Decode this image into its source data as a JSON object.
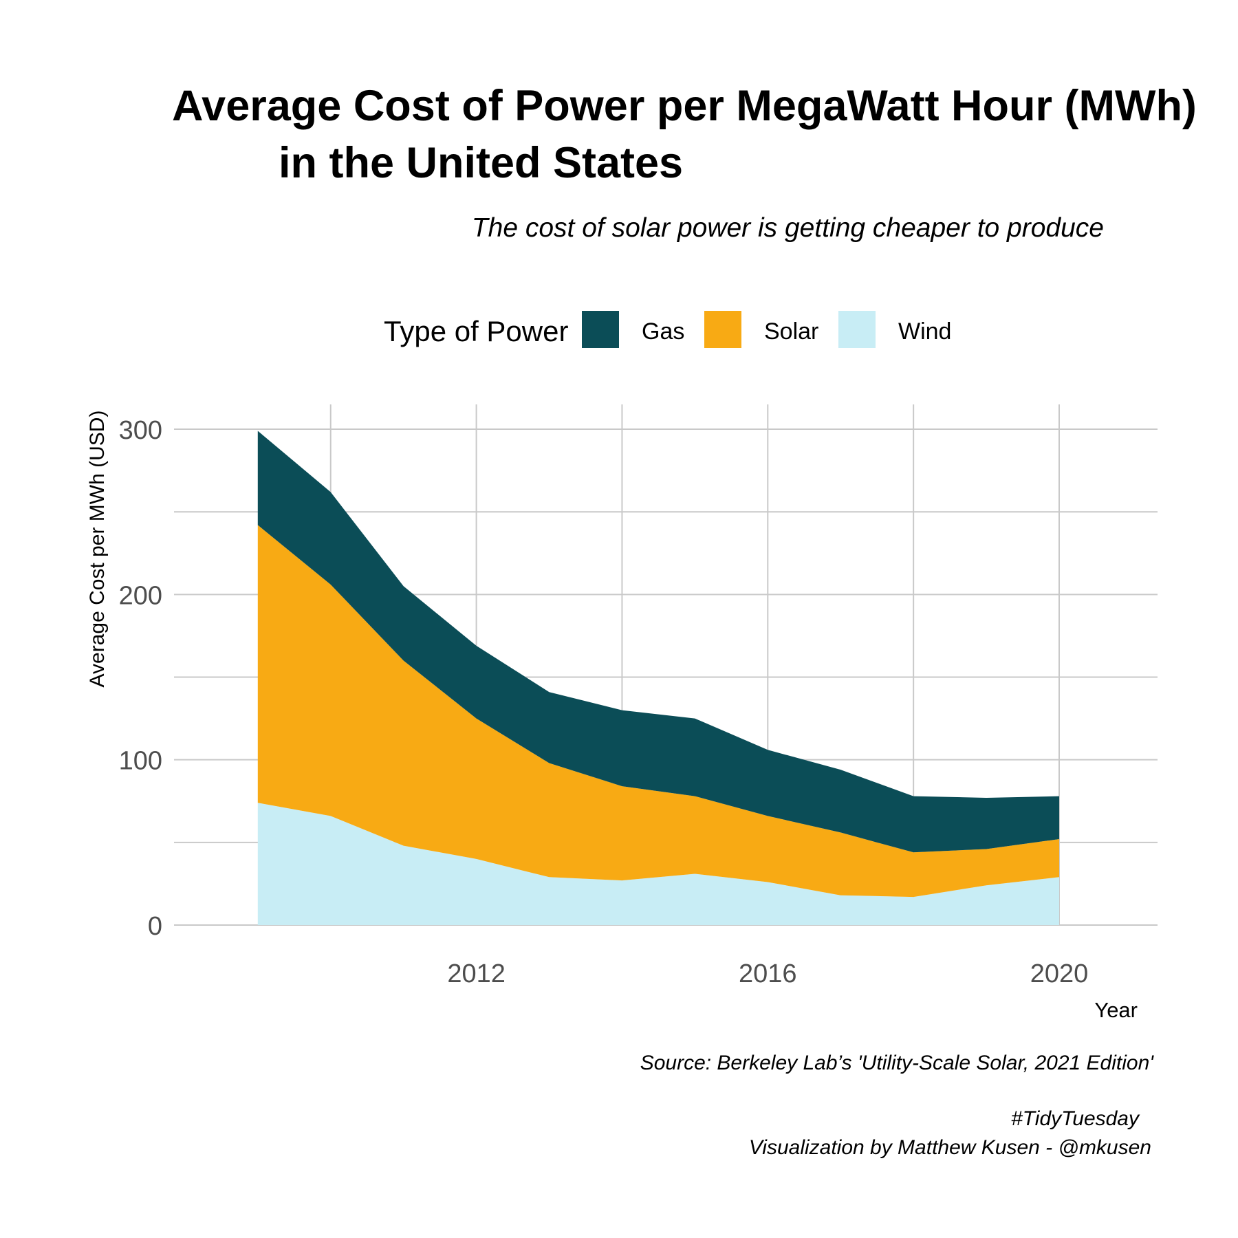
{
  "chart_data": {
    "type": "area",
    "stacked": true,
    "title_lines": [
      "Average Cost of Power per MegaWatt Hour (MWh)",
      "in the United States"
    ],
    "subtitle": "The cost of solar power is getting cheaper to produce",
    "xlabel": "Year",
    "ylabel": "Average Cost per MWh (USD)",
    "legend": {
      "title": "Type of Power",
      "placement": "top"
    },
    "x": [
      2009,
      2010,
      2011,
      2012,
      2013,
      2014,
      2015,
      2016,
      2017,
      2018,
      2019,
      2020
    ],
    "xlim": [
      2007.85,
      2021.35
    ],
    "ylim": [
      0,
      315
    ],
    "x_ticks": [
      2012,
      2016,
      2020
    ],
    "x_minor_ticks": [
      2010,
      2014,
      2018
    ],
    "y_ticks": [
      0,
      100,
      200,
      300
    ],
    "y_minor_ticks": [
      50,
      150,
      250
    ],
    "grid": true,
    "series": [
      {
        "name": "Gas",
        "color": "#0b4d57",
        "values": [
          57,
          56,
          45,
          44,
          43,
          46,
          47,
          40,
          38,
          34,
          31,
          26
        ]
      },
      {
        "name": "Solar",
        "color": "#f8aa14",
        "values": [
          168,
          140,
          112,
          85,
          69,
          57,
          47,
          40,
          38,
          27,
          22,
          23
        ]
      },
      {
        "name": "Wind",
        "color": "#c8edf5",
        "values": [
          74,
          66,
          48,
          40,
          29,
          27,
          31,
          26,
          18,
          17,
          24,
          29
        ]
      }
    ],
    "stack_order": [
      "Wind",
      "Solar",
      "Gas"
    ],
    "caption": {
      "source": "Source: Berkeley Lab’s 'Utility-Scale Solar, 2021 Edition'",
      "hashtag": "#TidyTuesday",
      "credit": "Visualization by Matthew Kusen - @mkusen"
    }
  }
}
